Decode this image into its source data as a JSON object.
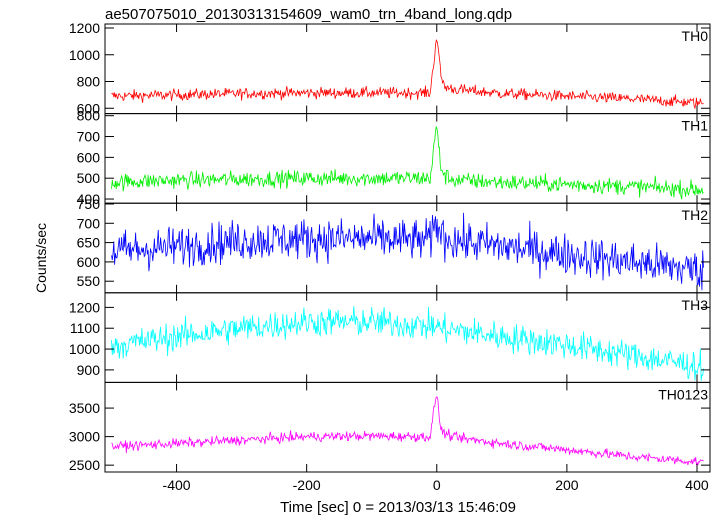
{
  "chart_data": {
    "type": "line",
    "title": "ae507075010_20130313154609_wam0_trn_4band_long.qdp",
    "xlabel": "Time [sec] 0 = 2013/03/13 15:46:09",
    "ylabel": "Counts/sec",
    "xlim": [
      -510,
      420
    ],
    "x_ticks": [
      -400,
      -200,
      0,
      200,
      400
    ],
    "grid": false,
    "legend": "none",
    "x_shape": [
      -510,
      -400,
      -300,
      -200,
      -100,
      -10,
      0,
      3,
      6,
      12,
      30,
      100,
      200,
      300,
      400,
      420
    ],
    "panels": [
      {
        "name": "TH0",
        "color": "#ff0000",
        "ylim": [
          560,
          1230
        ],
        "y_ticks": [
          600,
          800,
          1000,
          1200
        ],
        "baseline": [
          690,
          700,
          710,
          715,
          715,
          715,
          1150,
          1000,
          850,
          760,
          740,
          710,
          690,
          670,
          640,
          635
        ],
        "noise": 30
      },
      {
        "name": "TH1",
        "color": "#00ee00",
        "ylim": [
          380,
          810
        ],
        "y_ticks": [
          400,
          500,
          600,
          700,
          800
        ],
        "baseline": [
          480,
          490,
          495,
          500,
          500,
          500,
          760,
          650,
          560,
          510,
          490,
          480,
          470,
          460,
          445,
          440
        ],
        "noise": 28
      },
      {
        "name": "TH2",
        "color": "#0000ff",
        "ylim": [
          520,
          752
        ],
        "y_ticks": [
          550,
          600,
          650,
          700,
          750
        ],
        "baseline": [
          625,
          640,
          655,
          660,
          660,
          655,
          700,
          690,
          675,
          665,
          655,
          640,
          620,
          600,
          580,
          575
        ],
        "noise": 38
      },
      {
        "name": "TH3",
        "color": "#00ffff",
        "ylim": [
          840,
          1270
        ],
        "y_ticks": [
          900,
          1000,
          1100,
          1200
        ],
        "baseline": [
          1010,
          1060,
          1100,
          1130,
          1130,
          1110,
          1110,
          1105,
          1100,
          1095,
          1090,
          1060,
          1020,
          970,
          920,
          905
        ],
        "noise": 50
      },
      {
        "name": "TH0123",
        "color": "#ff00ff",
        "ylim": [
          2380,
          3950
        ],
        "y_ticks": [
          2500,
          3000,
          3500
        ],
        "baseline": [
          2820,
          2880,
          2940,
          3000,
          3010,
          3000,
          3800,
          3420,
          3150,
          3050,
          2980,
          2880,
          2770,
          2650,
          2560,
          2540
        ],
        "noise": 60
      }
    ]
  }
}
